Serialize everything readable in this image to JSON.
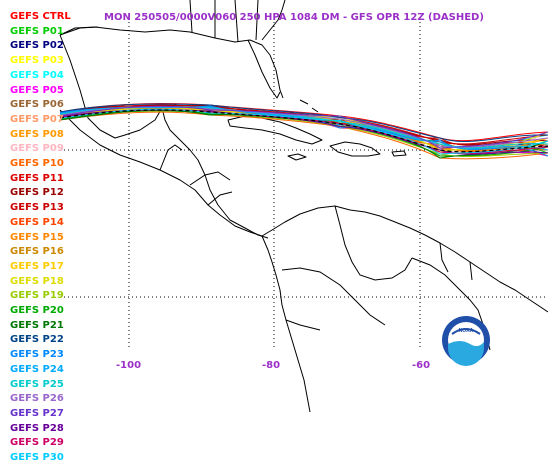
{
  "title": "MON 250505/0000V060  250 HPA 1084 DM - GFS OPR 12Z (DASHED)",
  "legend": [
    {
      "label": "GEFS CTRL",
      "color": "#ff0000"
    },
    {
      "label": "GEFS P01",
      "color": "#00cc00"
    },
    {
      "label": "GEFS P02",
      "color": "#000080"
    },
    {
      "label": "GEFS P03",
      "color": "#ffff00"
    },
    {
      "label": "GEFS P04",
      "color": "#00ffff"
    },
    {
      "label": "GEFS P05",
      "color": "#ff00ff"
    },
    {
      "label": "GEFS P06",
      "color": "#996633"
    },
    {
      "label": "GEFS P07",
      "color": "#ff9966"
    },
    {
      "label": "GEFS P08",
      "color": "#ff9900"
    },
    {
      "label": "GEFS P09",
      "color": "#ffb6c1"
    },
    {
      "label": "GEFS P10",
      "color": "#ff6600"
    },
    {
      "label": "GEFS P11",
      "color": "#dd0000"
    },
    {
      "label": "GEFS P12",
      "color": "#990000"
    },
    {
      "label": "GEFS P13",
      "color": "#cc0000"
    },
    {
      "label": "GEFS P14",
      "color": "#ff4400"
    },
    {
      "label": "GEFS P15",
      "color": "#ff8800"
    },
    {
      "label": "GEFS P16",
      "color": "#cc8800"
    },
    {
      "label": "GEFS P17",
      "color": "#ffcc00"
    },
    {
      "label": "GEFS P18",
      "color": "#dddd00"
    },
    {
      "label": "GEFS P19",
      "color": "#99cc00"
    },
    {
      "label": "GEFS P20",
      "color": "#00aa00"
    },
    {
      "label": "GEFS P21",
      "color": "#007700"
    },
    {
      "label": "GEFS P22",
      "color": "#004488"
    },
    {
      "label": "GEFS P23",
      "color": "#0088ff"
    },
    {
      "label": "GEFS P24",
      "color": "#00aaff"
    },
    {
      "label": "GEFS P25",
      "color": "#00cccc"
    },
    {
      "label": "GEFS P26",
      "color": "#9966cc"
    },
    {
      "label": "GEFS P27",
      "color": "#6633cc"
    },
    {
      "label": "GEFS P28",
      "color": "#660099"
    },
    {
      "label": "GEFS P29",
      "color": "#cc0066"
    },
    {
      "label": "GEFS P30",
      "color": "#00ccff"
    }
  ],
  "lon_labels": [
    "-100",
    "-80",
    "-60"
  ],
  "logo_text": "NOAA",
  "colors": {
    "title": "#9b30c8",
    "land": "#000000",
    "grid": "#000000",
    "background": "#ffffff"
  }
}
